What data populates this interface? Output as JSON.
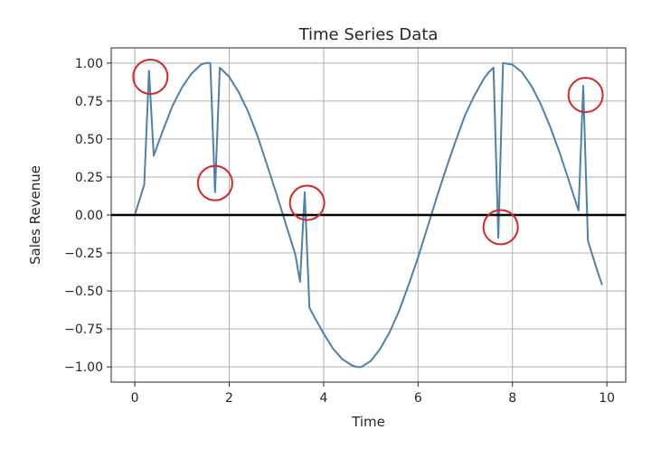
{
  "chart_data": {
    "type": "line",
    "title": "Time Series Data",
    "xlabel": "Time",
    "ylabel": "Sales Revenue",
    "xlim": [
      -0.5,
      10.4
    ],
    "ylim": [
      -1.1,
      1.1
    ],
    "xticks": [
      0,
      2,
      4,
      6,
      8,
      10
    ],
    "xtick_labels": [
      "0",
      "2",
      "4",
      "6",
      "8",
      "10"
    ],
    "yticks": [
      1.0,
      0.75,
      0.5,
      0.25,
      0.0,
      -0.25,
      -0.5,
      -0.75,
      -1.0
    ],
    "ytick_labels": [
      "1.00",
      "0.75",
      "0.50",
      "0.25",
      "0.00",
      "−0.25",
      "−0.50",
      "−0.75",
      "−1.00"
    ],
    "grid": true,
    "reference_line": {
      "y": 0,
      "color": "#000000"
    },
    "series": [
      {
        "color": "#4f81a8",
        "x": [
          0.0,
          0.2,
          0.3,
          0.4,
          0.6,
          0.8,
          1.0,
          1.2,
          1.4,
          1.5,
          1.6,
          1.7,
          1.8,
          2.0,
          2.2,
          2.4,
          2.6,
          2.8,
          3.0,
          3.2,
          3.4,
          3.5,
          3.6,
          3.7,
          3.8,
          4.0,
          4.2,
          4.4,
          4.6,
          4.7,
          4.8,
          5.0,
          5.2,
          5.4,
          5.6,
          5.8,
          6.0,
          6.2,
          6.4,
          6.6,
          6.8,
          7.0,
          7.2,
          7.4,
          7.5,
          7.6,
          7.7,
          7.8,
          8.0,
          8.2,
          8.4,
          8.6,
          8.8,
          9.0,
          9.2,
          9.4,
          9.5,
          9.6,
          9.8,
          9.9
        ],
        "y": [
          0.0,
          0.2,
          0.95,
          0.39,
          0.56,
          0.72,
          0.84,
          0.93,
          0.99,
          1.0,
          1.0,
          0.15,
          0.97,
          0.91,
          0.81,
          0.68,
          0.52,
          0.33,
          0.14,
          -0.06,
          -0.26,
          -0.44,
          0.15,
          -0.61,
          -0.67,
          -0.78,
          -0.88,
          -0.95,
          -0.99,
          -1.0,
          -1.0,
          -0.96,
          -0.88,
          -0.77,
          -0.63,
          -0.46,
          -0.28,
          -0.08,
          0.12,
          0.31,
          0.49,
          0.66,
          0.79,
          0.9,
          0.94,
          0.97,
          -0.15,
          1.0,
          0.99,
          0.94,
          0.85,
          0.73,
          0.58,
          0.41,
          0.22,
          0.03,
          0.85,
          -0.17,
          -0.37,
          -0.46
        ]
      }
    ],
    "annotations": [
      {
        "type": "circle",
        "x": 0.33,
        "y": 0.91,
        "color": "#d62728"
      },
      {
        "type": "circle",
        "x": 1.7,
        "y": 0.21,
        "color": "#d62728"
      },
      {
        "type": "circle",
        "x": 3.65,
        "y": 0.08,
        "color": "#d62728"
      },
      {
        "type": "circle",
        "x": 7.75,
        "y": -0.08,
        "color": "#d62728"
      },
      {
        "type": "circle",
        "x": 9.55,
        "y": 0.79,
        "color": "#d62728"
      }
    ]
  }
}
